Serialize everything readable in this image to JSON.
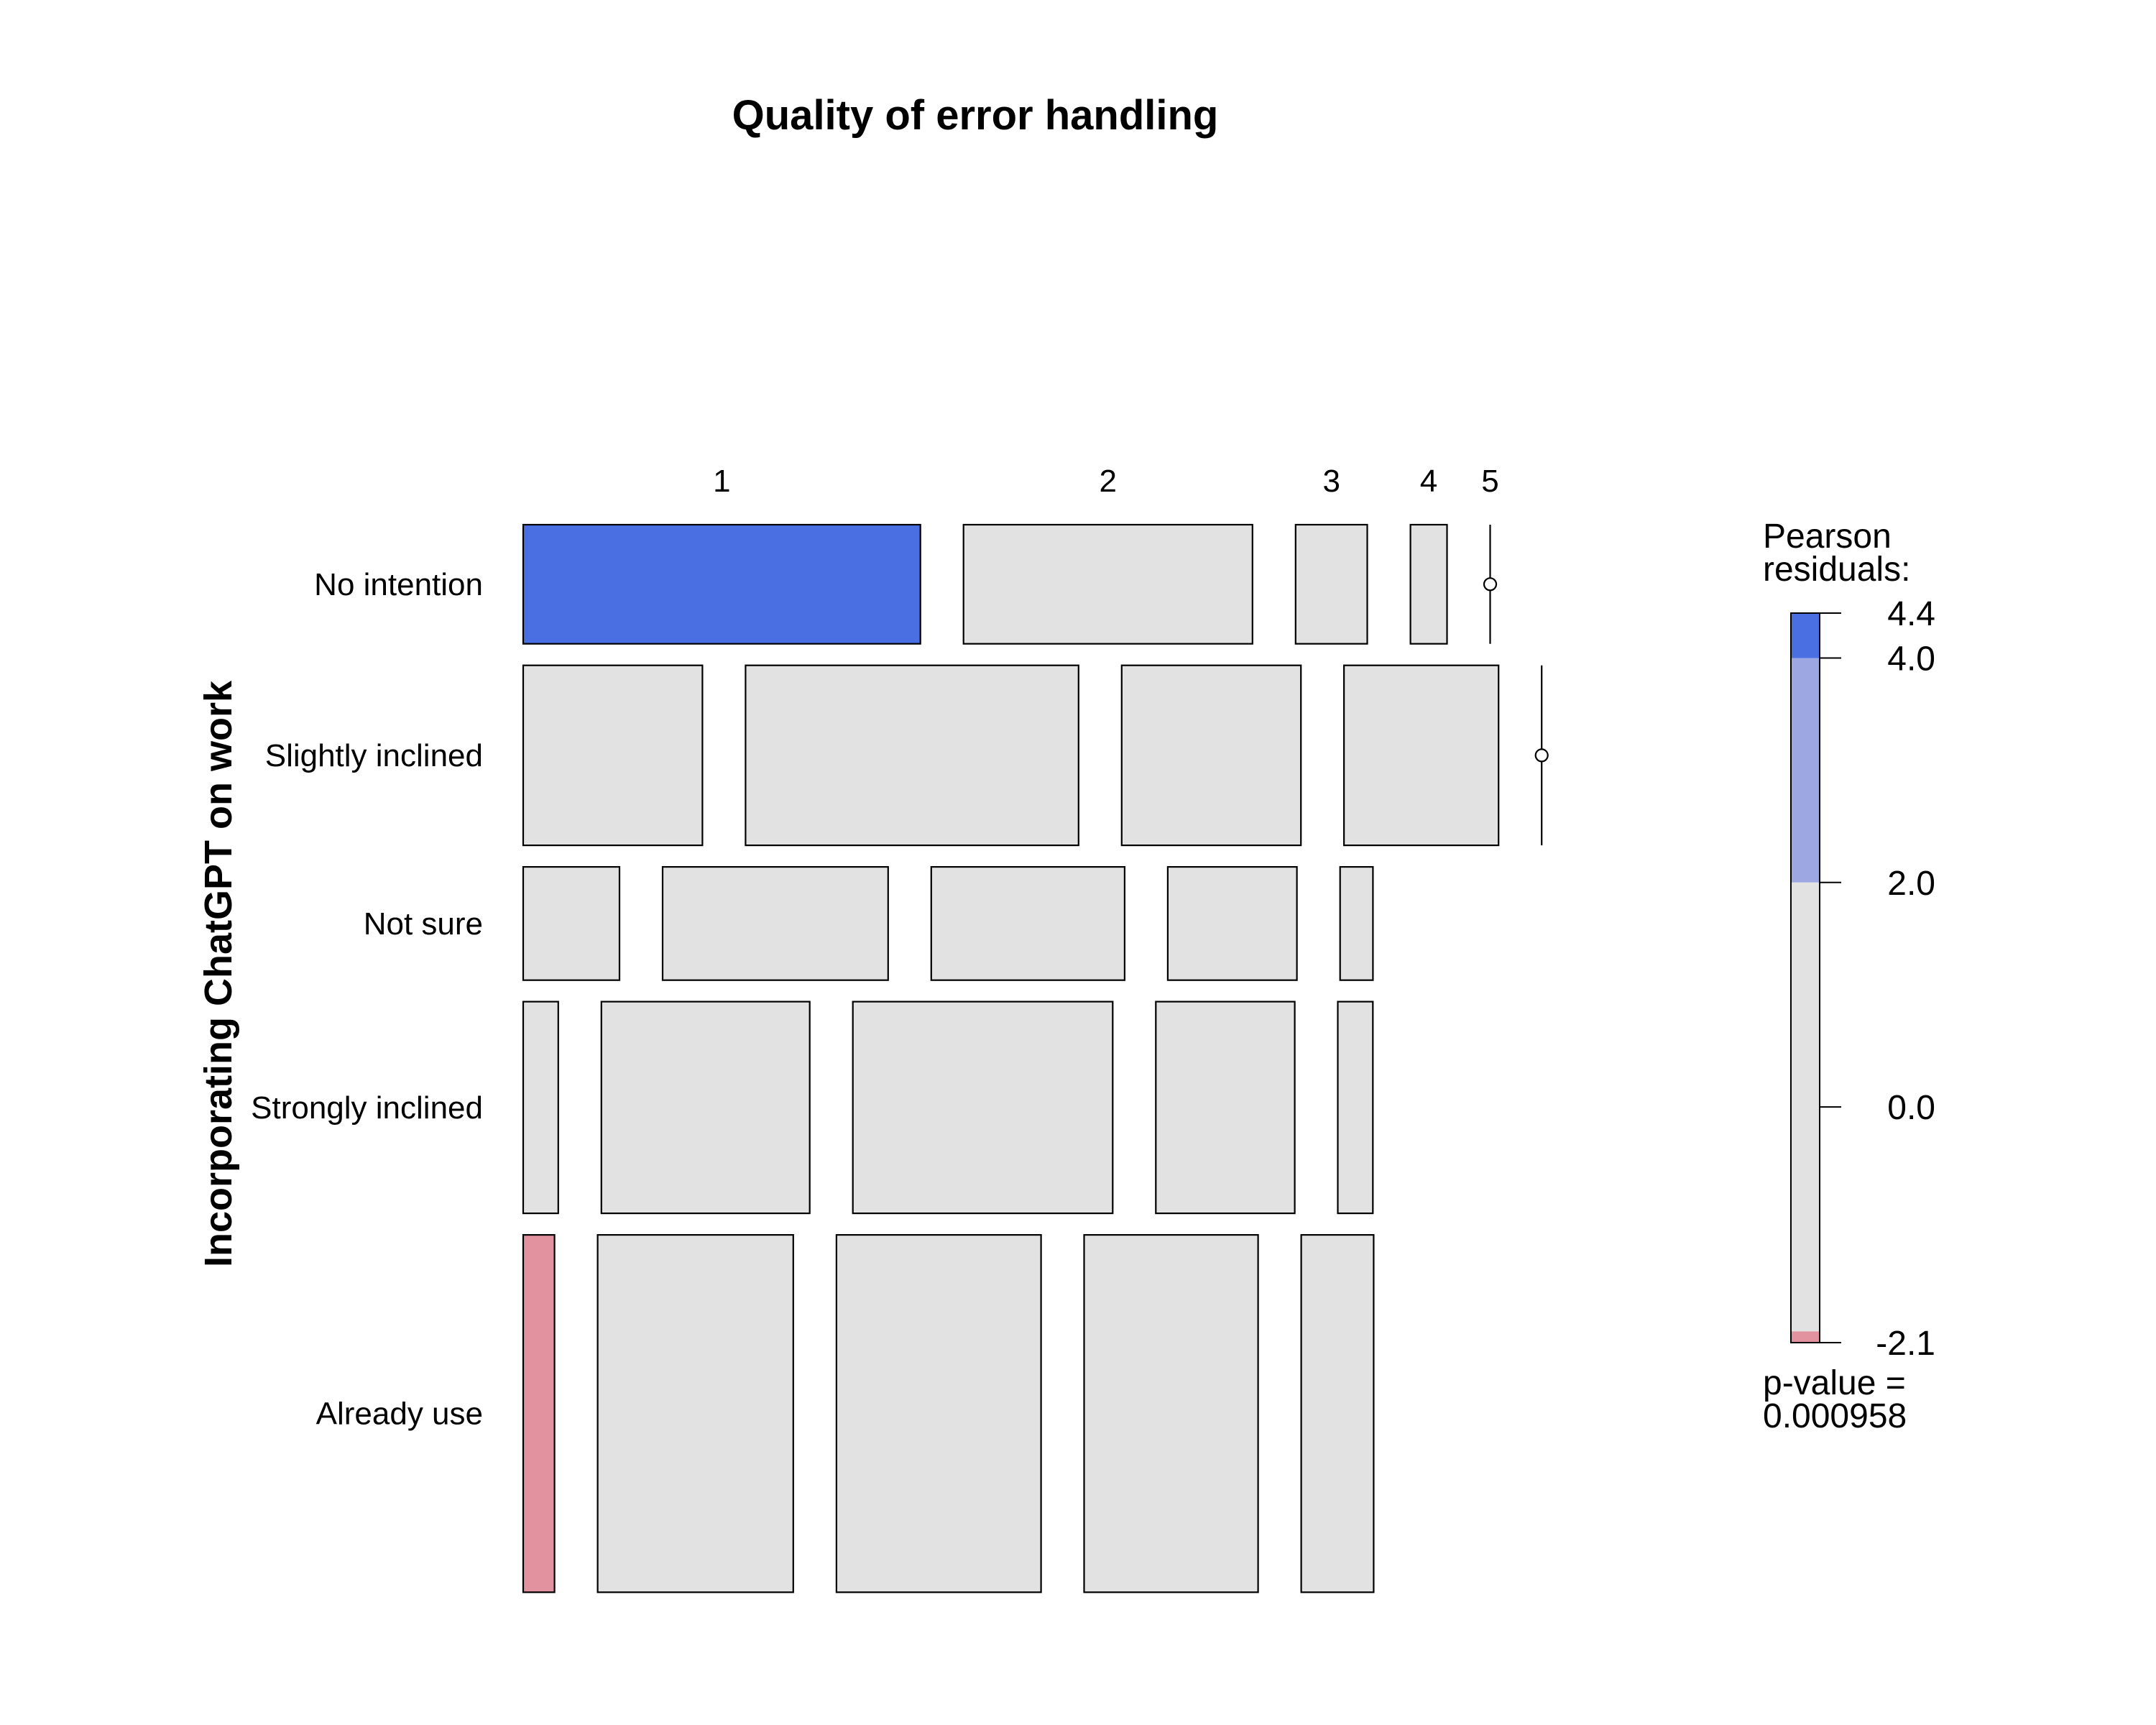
{
  "chart_data": {
    "type": "mosaic",
    "title": "Quality of error handling",
    "ylabel": "Incorporating ChatGPT on work",
    "columns": [
      "1",
      "2",
      "3",
      "4",
      "5"
    ],
    "rows": [
      {
        "name": "No intention",
        "proportion": 0.1432,
        "cells": [
          {
            "col": "1",
            "share": 0.532,
            "residual": 4.4
          },
          {
            "col": "2",
            "share": 0.387,
            "residual": 0.5
          },
          {
            "col": "3",
            "share": 0.096,
            "residual": 0.5
          },
          {
            "col": "4",
            "share": 0.049,
            "residual": 0.5
          },
          {
            "col": "5",
            "share": 0.0,
            "residual": 0.0
          }
        ]
      },
      {
        "name": "Slightly inclined",
        "proportion": 0.2164,
        "cells": [
          {
            "col": "1",
            "share": 0.24,
            "residual": 0.5
          },
          {
            "col": "2",
            "share": 0.446,
            "residual": 0.5
          },
          {
            "col": "3",
            "share": 0.24,
            "residual": 0.5
          },
          {
            "col": "4",
            "share": 0.207,
            "residual": 0.5
          },
          {
            "col": "5",
            "share": 0.0,
            "residual": 0.0
          }
        ]
      },
      {
        "name": "Not sure",
        "proportion": 0.1362,
        "cells": [
          {
            "col": "1",
            "share": 0.129,
            "residual": 0.5
          },
          {
            "col": "2",
            "share": 0.302,
            "residual": 0.5
          },
          {
            "col": "3",
            "share": 0.259,
            "residual": 0.5
          },
          {
            "col": "4",
            "share": 0.173,
            "residual": 0.5
          },
          {
            "col": "5",
            "share": 0.044,
            "residual": 0.5
          }
        ]
      },
      {
        "name": "Strongly inclined",
        "proportion": 0.2545,
        "cells": [
          {
            "col": "1",
            "share": 0.047,
            "residual": 0.5
          },
          {
            "col": "2",
            "share": 0.279,
            "residual": 0.5
          },
          {
            "col": "3",
            "share": 0.348,
            "residual": 0.5
          },
          {
            "col": "4",
            "share": 0.186,
            "residual": 0.5
          },
          {
            "col": "5",
            "share": 0.047,
            "residual": 0.5
          }
        ]
      },
      {
        "name": "Already use",
        "proportion": 0.4297,
        "cells": [
          {
            "col": "1",
            "share": 0.042,
            "residual": -2.1
          },
          {
            "col": "2",
            "share": 0.262,
            "residual": 0.5
          },
          {
            "col": "3",
            "share": 0.274,
            "residual": 0.5
          },
          {
            "col": "4",
            "share": 0.233,
            "residual": 0.5
          },
          {
            "col": "5",
            "share": 0.097,
            "residual": 0.5
          }
        ]
      }
    ],
    "legend": {
      "title_lines": [
        "Pearson",
        "residuals:"
      ],
      "range": [
        -2.1,
        4.4
      ],
      "ticks": [
        {
          "value": 4.4,
          "label": "4.4"
        },
        {
          "value": 4.0,
          "label": "4.0"
        },
        {
          "value": 2.0,
          "label": "2.0"
        },
        {
          "value": 0.0,
          "label": "0.0"
        },
        {
          "value": -2.1,
          "label": "-2.1"
        }
      ],
      "bands": [
        {
          "from": 4.0,
          "to": 4.4,
          "color": "#4a6fe3"
        },
        {
          "from": 2.0,
          "to": 4.0,
          "color": "#9da8e2"
        },
        {
          "from": -2.0,
          "to": 2.0,
          "color": "#e2e2e2"
        },
        {
          "from": -2.1,
          "to": -2.0,
          "color": "#e2929f"
        }
      ],
      "pvalue_lines": [
        "p-value =",
        "0.000958"
      ]
    },
    "colors": {
      "strong_positive": "#4a6fe3",
      "positive": "#9da8e2",
      "neutral": "#e2e2e2",
      "strong_negative": "#e2929f",
      "negative": "#e2b4bb",
      "border": "#000000"
    }
  }
}
